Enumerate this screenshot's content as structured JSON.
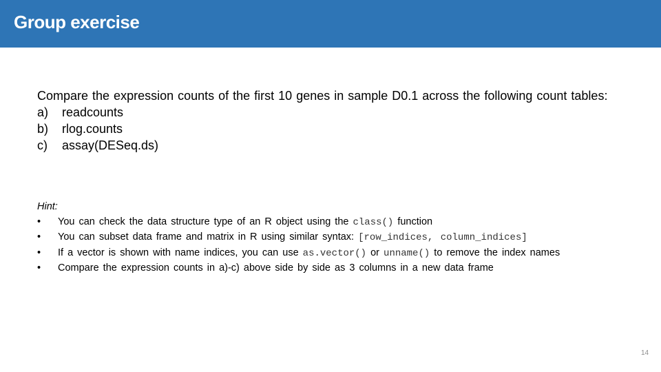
{
  "header": {
    "title": "Group exercise",
    "color": "#2E75B6"
  },
  "body": {
    "prompt": "Compare the expression counts of the first 10 genes in sample D0.1 across the following count tables:",
    "options": [
      {
        "marker": "a)",
        "text": "readcounts"
      },
      {
        "marker": "b)",
        "text": "rlog.counts"
      },
      {
        "marker": "c)",
        "text": "assay(DESeq.ds)"
      }
    ]
  },
  "hint": {
    "label": "Hint:",
    "bullet_symbol": "•",
    "items": [
      {
        "t1": "You can check the data structure type of an R object using the ",
        "c1": "class()",
        "t2": " function"
      },
      {
        "t1": "You can subset data frame and matrix in R using similar syntax: ",
        "c1": "[row_indices, column_indices]"
      },
      {
        "t1": "If a vector is shown with name indices, you can use ",
        "c1": "as.vector()",
        "t2": " or ",
        "c2": "unname()",
        "t3": " to remove the index names"
      },
      {
        "t1": "Compare the expression counts in a)-c) above side by side as 3 columns in a new data frame"
      }
    ]
  },
  "footer": {
    "page_number": "14"
  }
}
